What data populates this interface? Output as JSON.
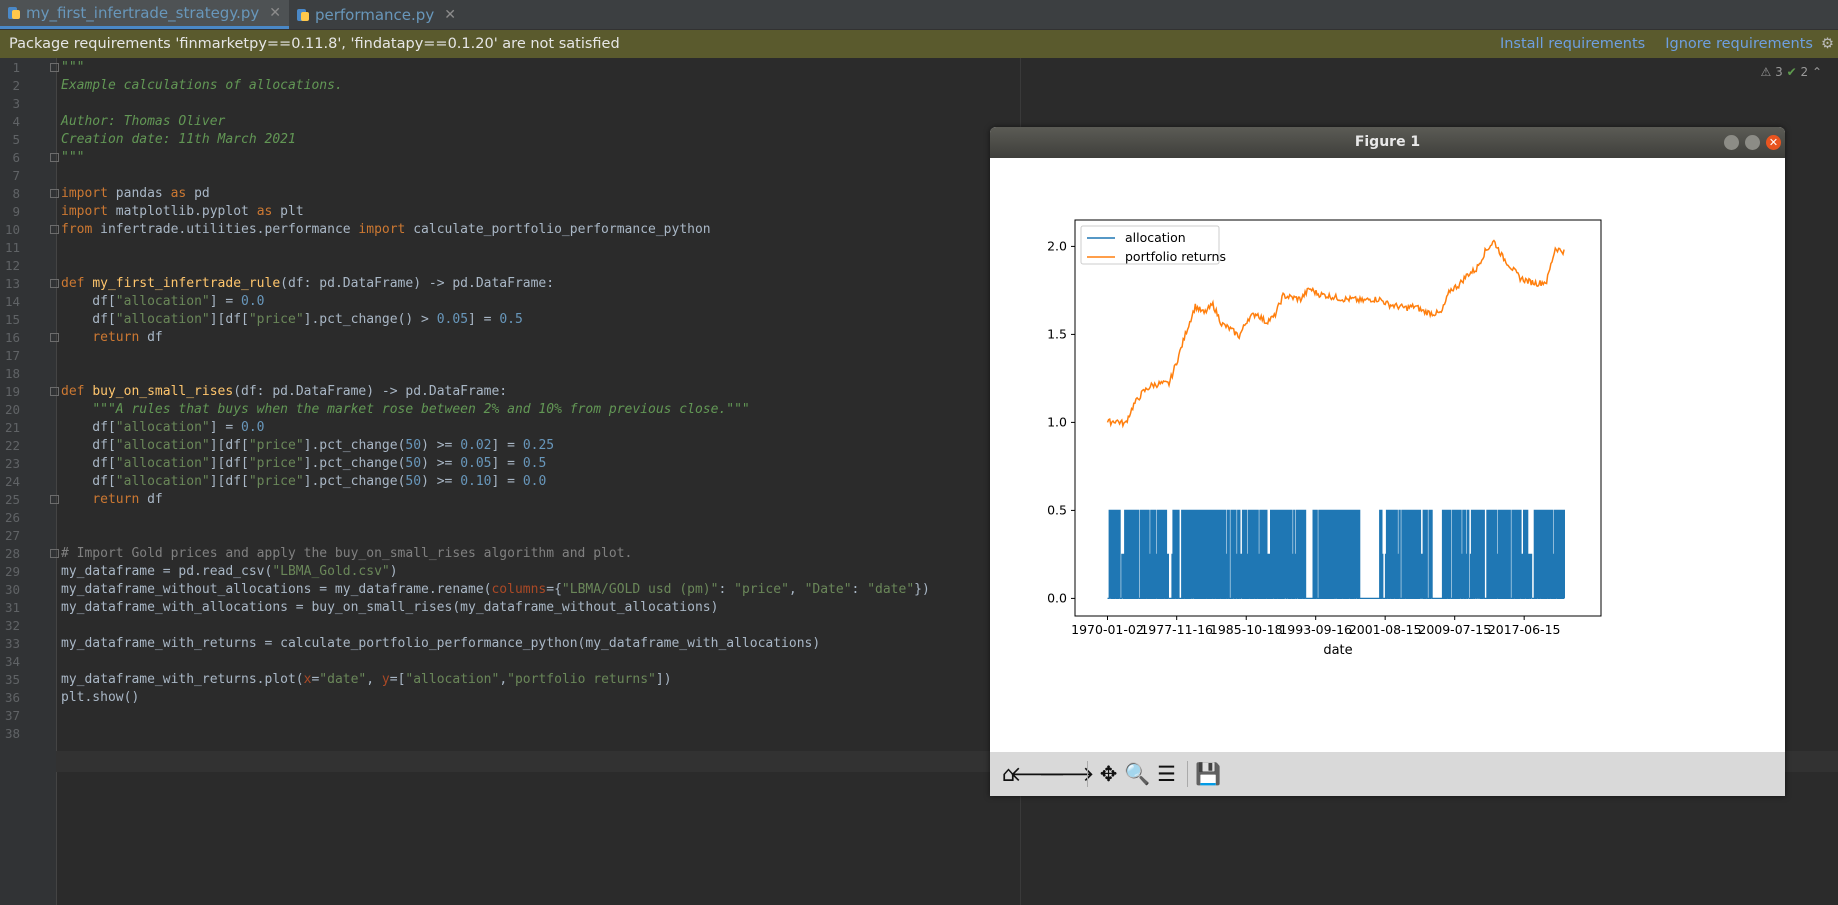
{
  "tabs": [
    {
      "label": "my_first_infertrade_strategy.py",
      "active": true
    },
    {
      "label": "performance.py",
      "active": false
    }
  ],
  "banner": {
    "message": "Package requirements 'finmarketpy==0.11.8', 'findatapy==0.1.20' are not satisfied",
    "install": "Install requirements",
    "ignore": "Ignore requirements"
  },
  "inspections": {
    "warnings": "3",
    "typos": "2"
  },
  "lines": [
    {
      "n": "1",
      "t": [
        [
          "\"\"\"",
          "doc"
        ]
      ]
    },
    {
      "n": "2",
      "t": [
        [
          "Example calculations of allocations.",
          "doc"
        ]
      ]
    },
    {
      "n": "3",
      "t": []
    },
    {
      "n": "4",
      "t": [
        [
          "Author: Thomas Oliver",
          "doc"
        ]
      ]
    },
    {
      "n": "5",
      "t": [
        [
          "Creation date: 11th March 2021",
          "doc"
        ]
      ]
    },
    {
      "n": "6",
      "t": [
        [
          "\"\"\"",
          "doc"
        ]
      ]
    },
    {
      "n": "7",
      "t": []
    },
    {
      "n": "8",
      "t": [
        [
          "import",
          "kw"
        ],
        [
          " pandas ",
          ""
        ],
        [
          "as",
          "kw"
        ],
        [
          " pd",
          ""
        ]
      ]
    },
    {
      "n": "9",
      "t": [
        [
          "import",
          "kw"
        ],
        [
          " matplotlib.pyplot ",
          ""
        ],
        [
          "as",
          "kw"
        ],
        [
          " plt",
          ""
        ]
      ]
    },
    {
      "n": "10",
      "t": [
        [
          "from",
          "kw"
        ],
        [
          " infertrade.utilities.performance ",
          ""
        ],
        [
          "import",
          "kw"
        ],
        [
          " calculate_portfolio_performance_python",
          ""
        ]
      ]
    },
    {
      "n": "11",
      "t": []
    },
    {
      "n": "12",
      "t": []
    },
    {
      "n": "13",
      "t": [
        [
          "def ",
          "kw"
        ],
        [
          "my_first_infertrade_rule",
          "fn"
        ],
        [
          "(df: pd.DataFrame) -> pd.DataFrame:",
          ""
        ]
      ]
    },
    {
      "n": "14",
      "t": [
        [
          "    df[",
          ""
        ],
        [
          "\"allocation\"",
          "st"
        ],
        [
          "] = ",
          ""
        ],
        [
          "0.0",
          "nm"
        ]
      ]
    },
    {
      "n": "15",
      "t": [
        [
          "    df[",
          ""
        ],
        [
          "\"allocation\"",
          "st"
        ],
        [
          "][df[",
          ""
        ],
        [
          "\"price\"",
          "st"
        ],
        [
          "].pct_change() > ",
          ""
        ],
        [
          "0.05",
          "nm"
        ],
        [
          "] = ",
          ""
        ],
        [
          "0.5",
          "nm"
        ]
      ]
    },
    {
      "n": "16",
      "t": [
        [
          "    ",
          ""
        ],
        [
          "return",
          "kw"
        ],
        [
          " df",
          ""
        ]
      ]
    },
    {
      "n": "17",
      "t": []
    },
    {
      "n": "18",
      "t": []
    },
    {
      "n": "19",
      "t": [
        [
          "def ",
          "kw"
        ],
        [
          "buy_on_small_rises",
          "fn"
        ],
        [
          "(df: pd.DataFrame) -> pd.DataFrame:",
          ""
        ]
      ]
    },
    {
      "n": "20",
      "t": [
        [
          "    ",
          ""
        ],
        [
          "\"\"\"A rules that buys when the market rose between 2% and 10% from previous close.\"\"\"",
          "doc"
        ]
      ]
    },
    {
      "n": "21",
      "t": [
        [
          "    df[",
          ""
        ],
        [
          "\"allocation\"",
          "st"
        ],
        [
          "] = ",
          ""
        ],
        [
          "0.0",
          "nm"
        ]
      ]
    },
    {
      "n": "22",
      "t": [
        [
          "    df[",
          ""
        ],
        [
          "\"allocation\"",
          "st"
        ],
        [
          "][df[",
          ""
        ],
        [
          "\"price\"",
          "st"
        ],
        [
          "].pct_change(",
          ""
        ],
        [
          "50",
          "nm"
        ],
        [
          ") >= ",
          ""
        ],
        [
          "0.02",
          "nm"
        ],
        [
          "] = ",
          ""
        ],
        [
          "0.25",
          "nm"
        ]
      ]
    },
    {
      "n": "23",
      "t": [
        [
          "    df[",
          ""
        ],
        [
          "\"allocation\"",
          "st"
        ],
        [
          "][df[",
          ""
        ],
        [
          "\"price\"",
          "st"
        ],
        [
          "].pct_change(",
          ""
        ],
        [
          "50",
          "nm"
        ],
        [
          ") >= ",
          ""
        ],
        [
          "0.05",
          "nm"
        ],
        [
          "] = ",
          ""
        ],
        [
          "0.5",
          "nm"
        ]
      ]
    },
    {
      "n": "24",
      "t": [
        [
          "    df[",
          ""
        ],
        [
          "\"allocation\"",
          "st"
        ],
        [
          "][df[",
          ""
        ],
        [
          "\"price\"",
          "st"
        ],
        [
          "].pct_change(",
          ""
        ],
        [
          "50",
          "nm"
        ],
        [
          ") >= ",
          ""
        ],
        [
          "0.10",
          "nm"
        ],
        [
          "] = ",
          ""
        ],
        [
          "0.0",
          "nm"
        ]
      ]
    },
    {
      "n": "25",
      "t": [
        [
          "    ",
          ""
        ],
        [
          "return",
          "kw"
        ],
        [
          " df",
          ""
        ]
      ]
    },
    {
      "n": "26",
      "t": []
    },
    {
      "n": "27",
      "t": []
    },
    {
      "n": "28",
      "t": [
        [
          "# Import Gold prices and apply the buy_on_small_rises algorithm and plot.",
          "cm"
        ]
      ]
    },
    {
      "n": "29",
      "t": [
        [
          "my_dataframe = pd.read_csv(",
          ""
        ],
        [
          "\"LBMA_Gold.csv\"",
          "st"
        ],
        [
          ")",
          ""
        ]
      ]
    },
    {
      "n": "30",
      "t": [
        [
          "my_dataframe_without_allocations = my_dataframe.rename(",
          ""
        ],
        [
          "columns",
          "pm"
        ],
        [
          "={",
          ""
        ],
        [
          "\"LBMA/GOLD usd (pm)\"",
          "st"
        ],
        [
          ": ",
          ""
        ],
        [
          "\"price\"",
          "st"
        ],
        [
          ", ",
          ""
        ],
        [
          "\"Date\"",
          "st"
        ],
        [
          ": ",
          ""
        ],
        [
          "\"date\"",
          "st"
        ],
        [
          "})",
          ""
        ]
      ]
    },
    {
      "n": "31",
      "t": [
        [
          "my_dataframe_with_allocations = buy_on_small_rises(my_dataframe_without_allocations)",
          ""
        ]
      ]
    },
    {
      "n": "32",
      "t": []
    },
    {
      "n": "33",
      "t": [
        [
          "my_dataframe_with_returns = calculate_portfolio_performance_python(my_dataframe_with_allocations)",
          ""
        ]
      ]
    },
    {
      "n": "34",
      "t": []
    },
    {
      "n": "35",
      "t": [
        [
          "my_dataframe_with_returns.plot(",
          ""
        ],
        [
          "x",
          "pm"
        ],
        [
          "=",
          ""
        ],
        [
          "\"date\"",
          "st"
        ],
        [
          ", ",
          ""
        ],
        [
          "y",
          "pm"
        ],
        [
          "=[",
          ""
        ],
        [
          "\"allocation\"",
          "st"
        ],
        [
          ",",
          ""
        ],
        [
          "\"portfolio returns\"",
          "st"
        ],
        [
          "])",
          ""
        ]
      ]
    },
    {
      "n": "36",
      "t": [
        [
          "plt.show()",
          ""
        ]
      ]
    },
    {
      "n": "37",
      "t": []
    },
    {
      "n": "38",
      "t": []
    }
  ],
  "figure": {
    "title": "Figure 1"
  },
  "colors": {
    "allocation": "#1f77b4",
    "returns": "#ff7f0e"
  },
  "chart_data": {
    "type": "line",
    "xlabel": "date",
    "ylabel": "",
    "ylim": [
      -0.1,
      2.15
    ],
    "yticks": [
      0.0,
      0.5,
      1.0,
      1.5,
      2.0
    ],
    "xticks": [
      "1970-01-02",
      "1977-11-16",
      "1985-10-18",
      "1993-09-16",
      "2001-08-15",
      "2009-07-15",
      "2017-06-15"
    ],
    "legend": "top-left",
    "series": [
      {
        "name": "allocation",
        "values_range": [
          0.0,
          0.5
        ],
        "levels": [
          0.0,
          0.25,
          0.5
        ]
      },
      {
        "name": "portfolio returns",
        "points": [
          [
            1970,
            1.0
          ],
          [
            1971,
            1.01
          ],
          [
            1972,
            0.99
          ],
          [
            1973,
            1.1
          ],
          [
            1974,
            1.17
          ],
          [
            1975,
            1.21
          ],
          [
            1976,
            1.22
          ],
          [
            1977,
            1.22
          ],
          [
            1978,
            1.36
          ],
          [
            1979,
            1.52
          ],
          [
            1980,
            1.66
          ],
          [
            1981,
            1.62
          ],
          [
            1982,
            1.67
          ],
          [
            1983,
            1.56
          ],
          [
            1984,
            1.53
          ],
          [
            1985,
            1.49
          ],
          [
            1986,
            1.59
          ],
          [
            1987,
            1.62
          ],
          [
            1988,
            1.57
          ],
          [
            1989,
            1.6
          ],
          [
            1990,
            1.72
          ],
          [
            1991,
            1.71
          ],
          [
            1992,
            1.7
          ],
          [
            1993,
            1.76
          ],
          [
            1994,
            1.73
          ],
          [
            1995,
            1.72
          ],
          [
            1996,
            1.71
          ],
          [
            1997,
            1.7
          ],
          [
            1998,
            1.7
          ],
          [
            1999,
            1.69
          ],
          [
            2000,
            1.7
          ],
          [
            2001,
            1.7
          ],
          [
            2002,
            1.67
          ],
          [
            2003,
            1.66
          ],
          [
            2004,
            1.65
          ],
          [
            2005,
            1.66
          ],
          [
            2006,
            1.63
          ],
          [
            2007,
            1.62
          ],
          [
            2008,
            1.62
          ],
          [
            2009,
            1.75
          ],
          [
            2010,
            1.78
          ],
          [
            2011,
            1.84
          ],
          [
            2012,
            1.87
          ],
          [
            2013,
            1.97
          ],
          [
            2014,
            2.03
          ],
          [
            2015,
            1.94
          ],
          [
            2016,
            1.88
          ],
          [
            2017,
            1.82
          ],
          [
            2018,
            1.8
          ],
          [
            2019,
            1.79
          ],
          [
            2020,
            1.8
          ],
          [
            2021,
            1.99
          ],
          [
            2022,
            1.97
          ]
        ]
      }
    ]
  }
}
